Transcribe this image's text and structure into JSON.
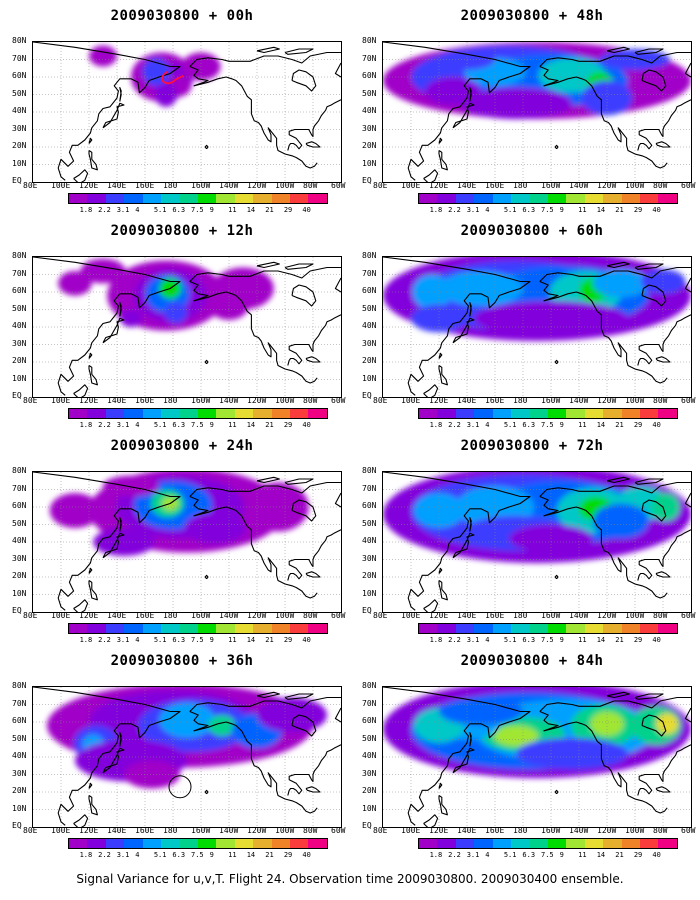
{
  "panels": [
    {
      "title": "2009030800 + 00h",
      "stage": 0
    },
    {
      "title": "2009030800 + 48h",
      "stage": 4
    },
    {
      "title": "2009030800 + 12h",
      "stage": 1
    },
    {
      "title": "2009030800 + 60h",
      "stage": 5
    },
    {
      "title": "2009030800 + 24h",
      "stage": 2
    },
    {
      "title": "2009030800 + 72h",
      "stage": 6
    },
    {
      "title": "2009030800 + 36h",
      "stage": 3
    },
    {
      "title": "2009030800 + 84h",
      "stage": 7
    }
  ],
  "lat_labels": [
    "80N",
    "70N",
    "60N",
    "50N",
    "40N",
    "30N",
    "20N",
    "10N",
    "EQ"
  ],
  "lon_labels": [
    "80E",
    "100E",
    "120E",
    "140E",
    "160E",
    "180",
    "160W",
    "140W",
    "120W",
    "100W",
    "80W",
    "60W"
  ],
  "colorbar": {
    "labels": [
      "1.8",
      "2.2",
      "3.1",
      "4",
      "5.1",
      "6.3",
      "7.5",
      "9",
      "11",
      "14",
      "21",
      "29",
      "40"
    ],
    "colors": [
      "#a000c8",
      "#8200dc",
      "#3c3cff",
      "#0064ff",
      "#00a0ff",
      "#00c8c8",
      "#00d28c",
      "#00dc00",
      "#a0e632",
      "#e6dc32",
      "#e6af2d",
      "#f08228",
      "#fa3c3c",
      "#f00082"
    ]
  },
  "footer": "Signal Variance for u,v,T. Flight 24. Observation time 2009030800. 2009030400 ensemble."
}
